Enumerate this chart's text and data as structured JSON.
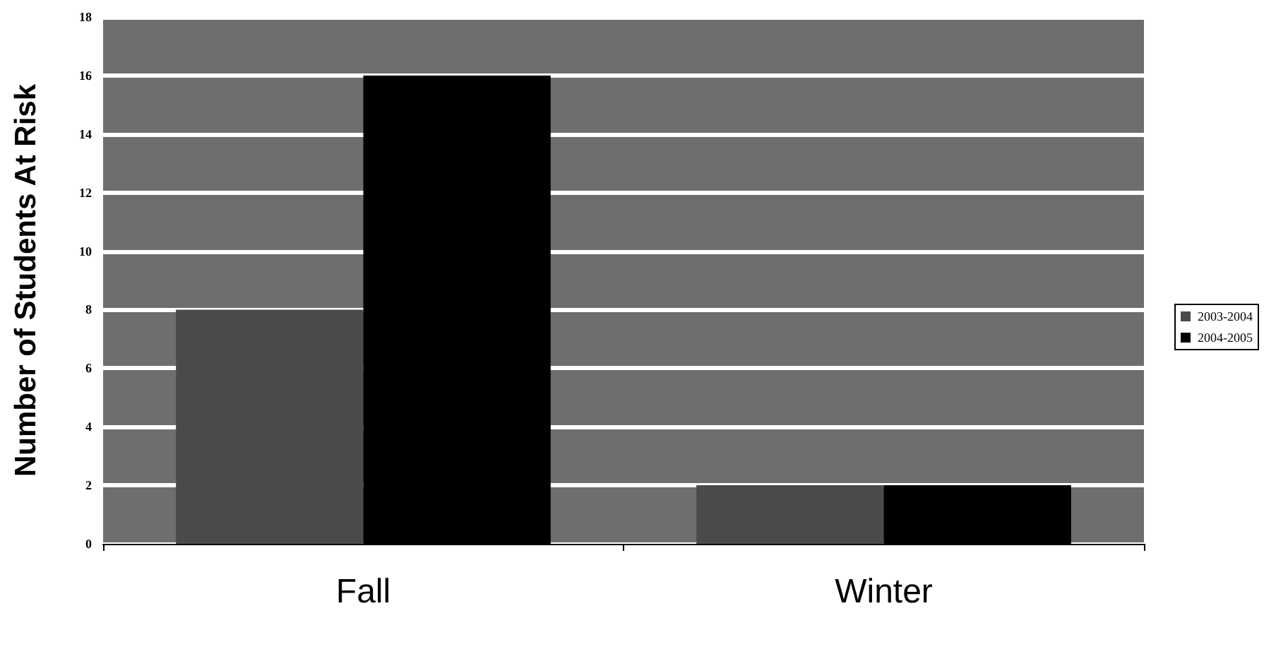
{
  "chart_data": {
    "type": "bar",
    "ylabel": "Number of Students At Risk",
    "categories": [
      "Fall",
      "Winter"
    ],
    "series": [
      {
        "name": "2003-2004",
        "color": "#4a4a4a",
        "values": [
          8,
          2
        ]
      },
      {
        "name": "2004-2005",
        "color": "#000000",
        "values": [
          16,
          2
        ]
      }
    ],
    "ylim": [
      0,
      18
    ],
    "yticks": [
      0,
      2,
      4,
      6,
      8,
      10,
      12,
      14,
      16,
      18
    ],
    "grid": "y",
    "legend": "right"
  }
}
